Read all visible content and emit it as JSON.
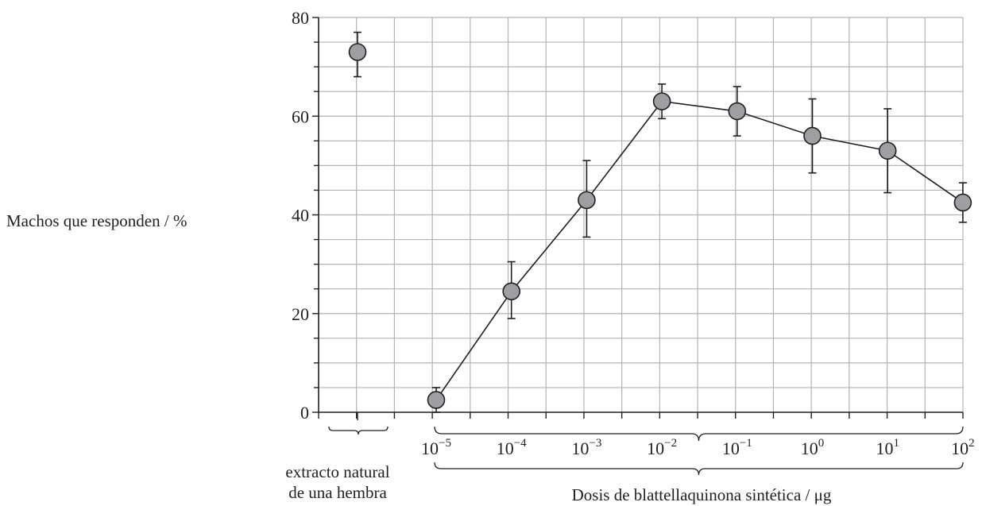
{
  "chart_data": {
    "type": "scatter",
    "ylabel": "Machos que responden / %",
    "xlabel": "Dosis de blattellaquinona sintética / μg",
    "control_label_line1": "extracto natural",
    "control_label_line2": "de una hembra",
    "ylim": [
      0,
      80
    ],
    "y_ticks": [
      "0",
      "20",
      "40",
      "60",
      "80"
    ],
    "grid": true,
    "colors": {
      "marker_fill": "#9d9fa2",
      "grid": "#b3b3b3",
      "ink": "#231f20"
    },
    "control": {
      "label": "extracto natural de una hembra",
      "y": 73,
      "err_low": 68,
      "err_high": 77
    },
    "series": [
      {
        "x": [
          "10^-5",
          "10^-4",
          "10^-3",
          "10^-2",
          "10^-1",
          "10^0",
          "10^1",
          "10^2"
        ],
        "tick_labels": [
          {
            "base": "10",
            "exp": "−5"
          },
          {
            "base": "10",
            "exp": "−4"
          },
          {
            "base": "10",
            "exp": "−3"
          },
          {
            "base": "10",
            "exp": "−2"
          },
          {
            "base": "10",
            "exp": "−1"
          },
          {
            "base": "10",
            "exp": "0"
          },
          {
            "base": "10",
            "exp": "1"
          },
          {
            "base": "10",
            "exp": "2"
          }
        ],
        "values": [
          2.5,
          24.5,
          43,
          63,
          61,
          56,
          53,
          42.5
        ],
        "err_low": [
          0,
          19,
          35.5,
          59.5,
          56,
          48.5,
          44.5,
          38.5
        ],
        "err_high": [
          5,
          30.5,
          51,
          66.5,
          66,
          63.5,
          61.5,
          46.5
        ]
      }
    ]
  }
}
